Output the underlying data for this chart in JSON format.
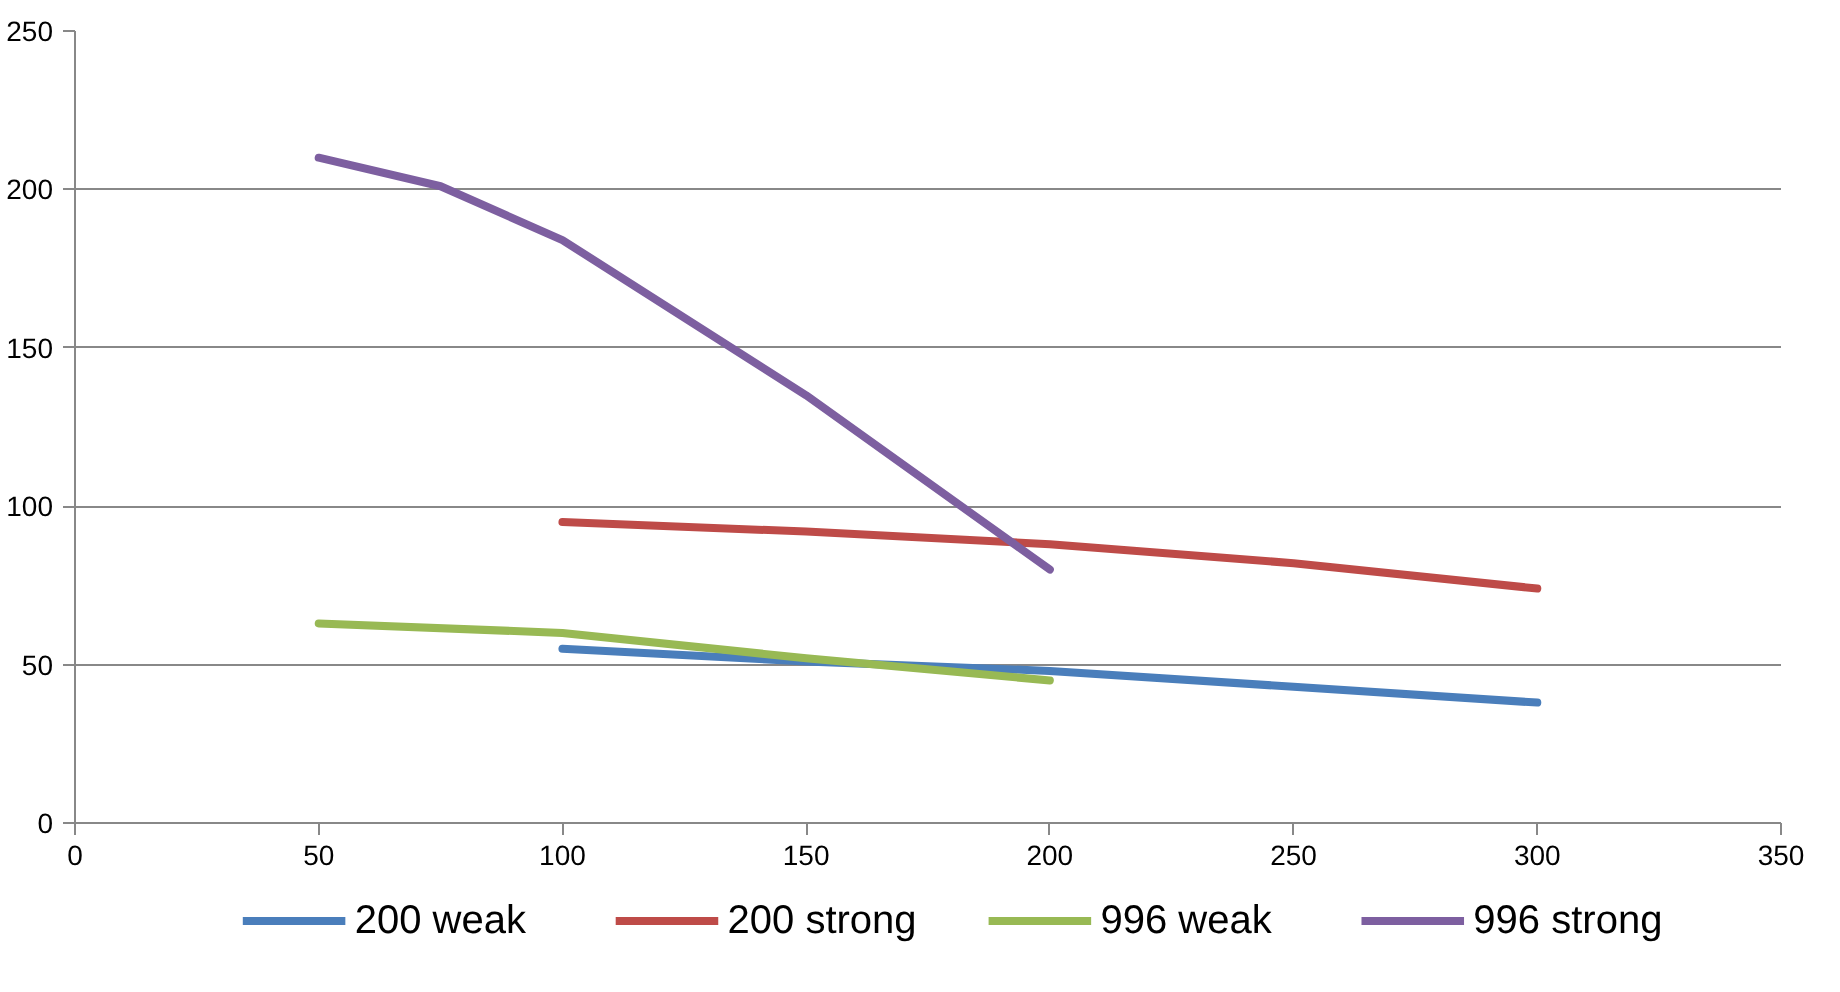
{
  "chart_data": {
    "type": "line",
    "series": [
      {
        "name": "200 weak",
        "color": "#4a7ebb",
        "x": [
          100,
          150,
          200,
          250,
          300
        ],
        "values": [
          55,
          51,
          48,
          43,
          38
        ]
      },
      {
        "name": "200 strong",
        "color": "#be4b48",
        "x": [
          100,
          150,
          200,
          250,
          300
        ],
        "values": [
          95,
          92,
          88,
          82,
          74
        ]
      },
      {
        "name": "996 weak",
        "color": "#98b954",
        "x": [
          50,
          100,
          150,
          200
        ],
        "values": [
          63,
          60,
          52,
          45
        ]
      },
      {
        "name": "996 strong",
        "color": "#7d5fa0",
        "x": [
          50,
          75,
          100,
          150,
          200
        ],
        "values": [
          210,
          201,
          184,
          135,
          80
        ]
      }
    ],
    "xlim": [
      0,
      350
    ],
    "xticks": [
      0,
      50,
      100,
      150,
      200,
      250,
      300,
      350
    ],
    "ylim": [
      0,
      250
    ],
    "yticks": [
      0,
      50,
      100,
      150,
      200,
      250
    ],
    "grid": "y",
    "legend": "bottom",
    "marker": "none",
    "line_style": "solid"
  }
}
